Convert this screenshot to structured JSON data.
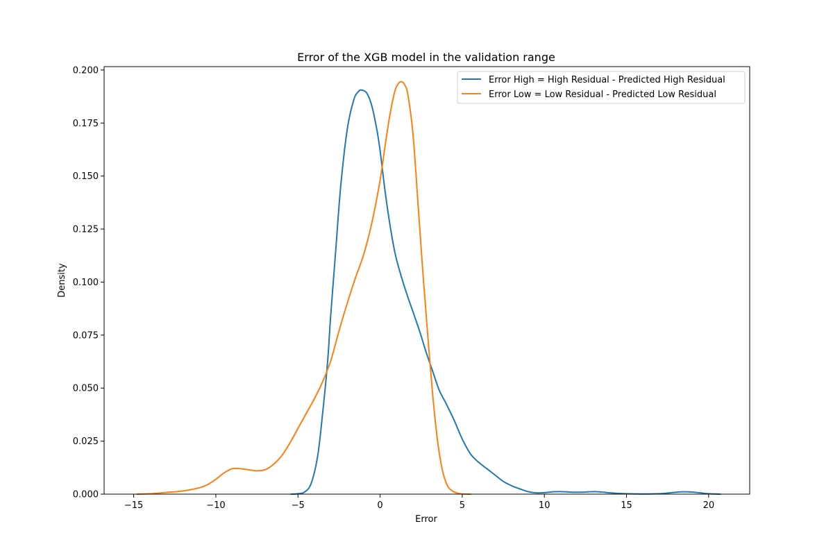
{
  "chart_data": {
    "type": "line",
    "title": "Error of the XGB model in the validation range",
    "xlabel": "Error",
    "ylabel": "Density",
    "xlim": [
      -16.8,
      22.5
    ],
    "ylim": [
      0.0,
      0.2016
    ],
    "x_ticks": [
      -15,
      -10,
      -5,
      0,
      5,
      10,
      15,
      20
    ],
    "x_tick_labels": [
      "−15",
      "−10",
      "−5",
      "0",
      "5",
      "10",
      "15",
      "20"
    ],
    "y_ticks": [
      0.0,
      0.025,
      0.05,
      0.075,
      0.1,
      0.125,
      0.15,
      0.175,
      0.2
    ],
    "y_tick_labels": [
      "0.000",
      "0.025",
      "0.050",
      "0.075",
      "0.100",
      "0.125",
      "0.150",
      "0.175",
      "0.200"
    ],
    "grid": false,
    "legend_position": "top-right",
    "series": [
      {
        "name": "Error High = High Residual - Predicted High Residual",
        "color": "#1f77b4",
        "x": [
          -5.4,
          -5.0,
          -4.6,
          -4.2,
          -3.8,
          -3.5,
          -3.2,
          -3.0,
          -2.7,
          -2.4,
          -2.0,
          -1.6,
          -1.3,
          -1.1,
          -0.8,
          -0.5,
          -0.2,
          0.0,
          0.3,
          0.6,
          0.9,
          1.2,
          1.6,
          2.0,
          2.4,
          2.8,
          3.2,
          3.6,
          4.0,
          4.5,
          5.0,
          5.5,
          6.0,
          6.5,
          7.0,
          7.5,
          8.0,
          8.5,
          9.0,
          9.5,
          10.0,
          10.5,
          11.0,
          11.5,
          12.0,
          12.5,
          13.0,
          13.5,
          14.0,
          15.0,
          16.0,
          17.0,
          17.5,
          18.0,
          18.5,
          19.0,
          19.5,
          20.0,
          20.7
        ],
        "y": [
          0.0,
          0.0002,
          0.001,
          0.005,
          0.018,
          0.038,
          0.062,
          0.085,
          0.115,
          0.145,
          0.172,
          0.186,
          0.19,
          0.1905,
          0.189,
          0.183,
          0.172,
          0.162,
          0.143,
          0.127,
          0.114,
          0.105,
          0.095,
          0.086,
          0.077,
          0.067,
          0.058,
          0.049,
          0.043,
          0.035,
          0.026,
          0.019,
          0.015,
          0.012,
          0.009,
          0.006,
          0.004,
          0.0025,
          0.0012,
          0.0006,
          0.0007,
          0.0011,
          0.0012,
          0.001,
          0.0009,
          0.001,
          0.0012,
          0.001,
          0.0006,
          0.0002,
          0.0001,
          0.0002,
          0.0005,
          0.0009,
          0.0011,
          0.001,
          0.0006,
          0.0002,
          0.0
        ]
      },
      {
        "name": "Error Low = Low Residual - Predicted Low Residual",
        "color": "#ff7f0e",
        "x": [
          -14.8,
          -14.0,
          -13.0,
          -12.0,
          -11.0,
          -10.5,
          -10.0,
          -9.5,
          -9.0,
          -8.5,
          -8.0,
          -7.5,
          -7.0,
          -6.5,
          -6.0,
          -5.5,
          -5.0,
          -4.5,
          -4.0,
          -3.5,
          -3.0,
          -2.5,
          -2.0,
          -1.5,
          -1.0,
          -0.5,
          0.0,
          0.3,
          0.6,
          0.9,
          1.1,
          1.3,
          1.5,
          1.7,
          2.0,
          2.3,
          2.6,
          2.9,
          3.2,
          3.5,
          3.8,
          4.1,
          4.4,
          4.7,
          5.0,
          5.5
        ],
        "y": [
          0.0,
          0.0002,
          0.0008,
          0.0015,
          0.003,
          0.0045,
          0.007,
          0.01,
          0.012,
          0.012,
          0.0115,
          0.011,
          0.0115,
          0.014,
          0.018,
          0.024,
          0.031,
          0.038,
          0.045,
          0.053,
          0.063,
          0.077,
          0.09,
          0.102,
          0.113,
          0.128,
          0.148,
          0.164,
          0.179,
          0.19,
          0.1935,
          0.1945,
          0.193,
          0.188,
          0.17,
          0.138,
          0.105,
          0.075,
          0.047,
          0.025,
          0.011,
          0.004,
          0.0015,
          0.0005,
          0.0001,
          0.0
        ]
      }
    ]
  }
}
